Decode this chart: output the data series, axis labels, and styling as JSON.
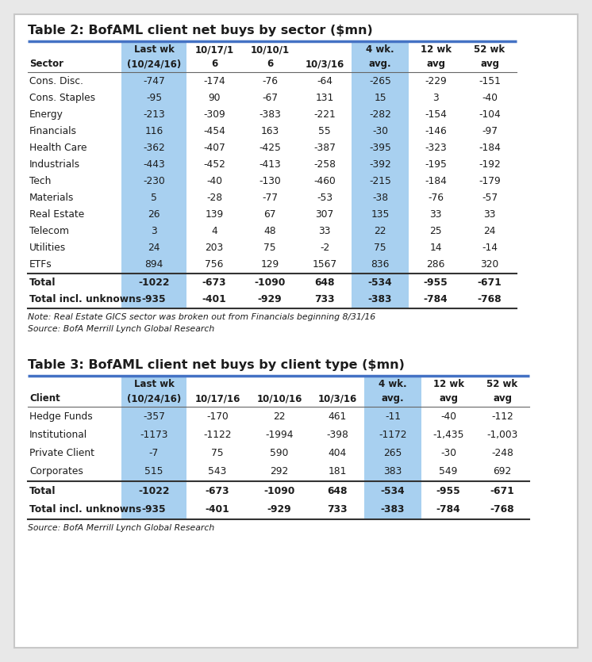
{
  "title1": "Table 2: BofAML client net buys by sector ($mn)",
  "table1_header_row1": [
    "",
    "Last wk",
    "10/17/1",
    "10/10/1",
    "",
    "4 wk.",
    "12 wk",
    "52 wk"
  ],
  "table1_header_row2": [
    "Sector",
    "(10/24/16)",
    "6",
    "6",
    "10/3/16",
    "avg.",
    "avg",
    "avg"
  ],
  "table1_data": [
    [
      "Cons. Disc.",
      "-747",
      "-174",
      "-76",
      "-64",
      "-265",
      "-229",
      "-151"
    ],
    [
      "Cons. Staples",
      "-95",
      "90",
      "-67",
      "131",
      "15",
      "3",
      "-40"
    ],
    [
      "Energy",
      "-213",
      "-309",
      "-383",
      "-221",
      "-282",
      "-154",
      "-104"
    ],
    [
      "Financials",
      "116",
      "-454",
      "163",
      "55",
      "-30",
      "-146",
      "-97"
    ],
    [
      "Health Care",
      "-362",
      "-407",
      "-425",
      "-387",
      "-395",
      "-323",
      "-184"
    ],
    [
      "Industrials",
      "-443",
      "-452",
      "-413",
      "-258",
      "-392",
      "-195",
      "-192"
    ],
    [
      "Tech",
      "-230",
      "-40",
      "-130",
      "-460",
      "-215",
      "-184",
      "-179"
    ],
    [
      "Materials",
      "5",
      "-28",
      "-77",
      "-53",
      "-38",
      "-76",
      "-57"
    ],
    [
      "Real Estate",
      "26",
      "139",
      "67",
      "307",
      "135",
      "33",
      "33"
    ],
    [
      "Telecom",
      "3",
      "4",
      "48",
      "33",
      "22",
      "25",
      "24"
    ],
    [
      "Utilities",
      "24",
      "203",
      "75",
      "-2",
      "75",
      "14",
      "-14"
    ],
    [
      "ETFs",
      "894",
      "756",
      "129",
      "1567",
      "836",
      "286",
      "320"
    ]
  ],
  "table1_total": [
    "Total",
    "-1022",
    "-673",
    "-1090",
    "648",
    "-534",
    "-955",
    "-671"
  ],
  "table1_total_incl": [
    "Total incl. unknowns",
    "-935",
    "-401",
    "-929",
    "733",
    "-383",
    "-784",
    "-768"
  ],
  "table1_note": "Note: Real Estate GICS sector was broken out from Financials beginning 8/31/16",
  "table1_source": "Source: BofA Merrill Lynch Global Research",
  "title2": "Table 3: BofAML client net buys by client type ($mn)",
  "table2_header_row1": [
    "",
    "Last wk",
    "",
    "",
    "",
    "4 wk.",
    "12 wk",
    "52 wk"
  ],
  "table2_header_row2": [
    "Client",
    "(10/24/16)",
    "10/17/16",
    "10/10/16",
    "10/3/16",
    "avg.",
    "avg",
    "avg"
  ],
  "table2_data": [
    [
      "Hedge Funds",
      "-357",
      "-170",
      "22",
      "461",
      "-11",
      "-40",
      "-112"
    ],
    [
      "Institutional",
      "-1173",
      "-1122",
      "-1994",
      "-398",
      "-1172",
      "-1,435",
      "-1,003"
    ],
    [
      "Private Client",
      "-7",
      "75",
      "590",
      "404",
      "265",
      "-30",
      "-248"
    ],
    [
      "Corporates",
      "515",
      "543",
      "292",
      "181",
      "383",
      "549",
      "692"
    ]
  ],
  "table2_total": [
    "Total",
    "-1022",
    "-673",
    "-1090",
    "648",
    "-534",
    "-955",
    "-671"
  ],
  "table2_total_incl": [
    "Total incl. unknowns",
    "-935",
    "-401",
    "-929",
    "733",
    "-383",
    "-784",
    "-768"
  ],
  "table2_source": "Source: BofA Merrill Lynch Global Research",
  "highlight_color": "#a8d0f0",
  "title_line_color": "#4472c4",
  "text_color": "#1c1c1c",
  "outer_border_color": "#c8c8c8",
  "outer_bg": "#ffffff",
  "page_bg": "#e8e8e8"
}
